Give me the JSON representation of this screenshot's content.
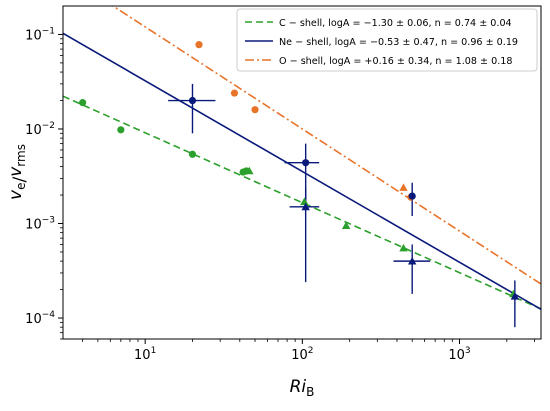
{
  "chart_data": {
    "type": "scatter",
    "title": "",
    "xlabel": "Ri_B",
    "ylabel": "v_e / v_rms",
    "xscale": "log",
    "yscale": "log",
    "xlim": [
      3,
      3300
    ],
    "ylim": [
      6e-05,
      0.2
    ],
    "grid": false,
    "legend_position": "top-right",
    "x_ticks": [
      {
        "value": 10,
        "base": "10",
        "exp": "1"
      },
      {
        "value": 100,
        "base": "10",
        "exp": "2"
      },
      {
        "value": 1000,
        "base": "10",
        "exp": "3"
      }
    ],
    "y_ticks": [
      {
        "value": 0.0001,
        "base": "10",
        "exp": "−4"
      },
      {
        "value": 0.001,
        "base": "10",
        "exp": "−3"
      },
      {
        "value": 0.01,
        "base": "10",
        "exp": "−2"
      },
      {
        "value": 0.1,
        "base": "10",
        "exp": "−1"
      }
    ],
    "fits": [
      {
        "name": "C − shell, logA = −1.30 ± 0.06, n = 0.74 ± 0.04",
        "logA": -1.3,
        "n": 0.74,
        "color": "#2ca02c",
        "dash": "dashed"
      },
      {
        "name": "Ne − shell, logA = −0.53 ± 0.47, n = 0.96 ± 0.19",
        "logA": -0.53,
        "n": 0.96,
        "color": "#0a1a7a",
        "dash": "solid"
      },
      {
        "name": "O − shell, logA = +0.16 ± 0.34, n = 1.08 ± 0.18",
        "logA": 0.16,
        "n": 1.08,
        "color": "#e8742a",
        "dash": "dashdot"
      }
    ],
    "series": [
      {
        "shell": "C",
        "marker": "circle",
        "color": "#2ca02c",
        "points": [
          [
            4,
            0.019
          ],
          [
            7,
            0.0098
          ],
          [
            20,
            0.0054
          ],
          [
            42,
            0.0035
          ],
          [
            44,
            0.0036
          ]
        ]
      },
      {
        "shell": "C",
        "marker": "triangle",
        "color": "#2ca02c",
        "points": [
          [
            46,
            0.0036
          ],
          [
            103,
            0.0017
          ],
          [
            190,
            0.00095
          ],
          [
            440,
            0.00055
          ],
          [
            2200,
            0.00018
          ]
        ]
      },
      {
        "shell": "O",
        "marker": "circle",
        "color": "#e8742a",
        "points": [
          [
            22,
            0.078
          ],
          [
            37,
            0.024
          ],
          [
            50,
            0.016
          ],
          [
            490,
            0.0019
          ]
        ]
      },
      {
        "shell": "O",
        "marker": "triangle",
        "color": "#e8742a",
        "points": [
          [
            440,
            0.0024
          ]
        ]
      },
      {
        "shell": "Ne",
        "marker": "circle",
        "color": "#0a1a7a",
        "points": [
          {
            "x": 20,
            "y": 0.02,
            "xlo": 14,
            "xhi": 28,
            "ylo": 0.009,
            "yhi": 0.03
          },
          {
            "x": 105,
            "y": 0.0044,
            "xlo": 77,
            "xhi": 128,
            "ylo": 0.00145,
            "yhi": 0.007
          },
          {
            "x": 500,
            "y": 0.00195,
            "ylo": 0.0012,
            "yhi": 0.0027
          }
        ]
      },
      {
        "shell": "Ne",
        "marker": "triangle",
        "color": "#0a1a7a",
        "points": [
          {
            "x": 105,
            "y": 0.0015,
            "xlo": 83,
            "xhi": 128,
            "ylo": 0.00024,
            "yhi": 0.0024
          },
          {
            "x": 500,
            "y": 0.0004,
            "xlo": 380,
            "xhi": 650,
            "ylo": 0.00018,
            "yhi": 0.0006
          },
          {
            "x": 2250,
            "y": 0.00017,
            "ylo": 8e-05,
            "yhi": 0.00025
          }
        ]
      }
    ]
  }
}
